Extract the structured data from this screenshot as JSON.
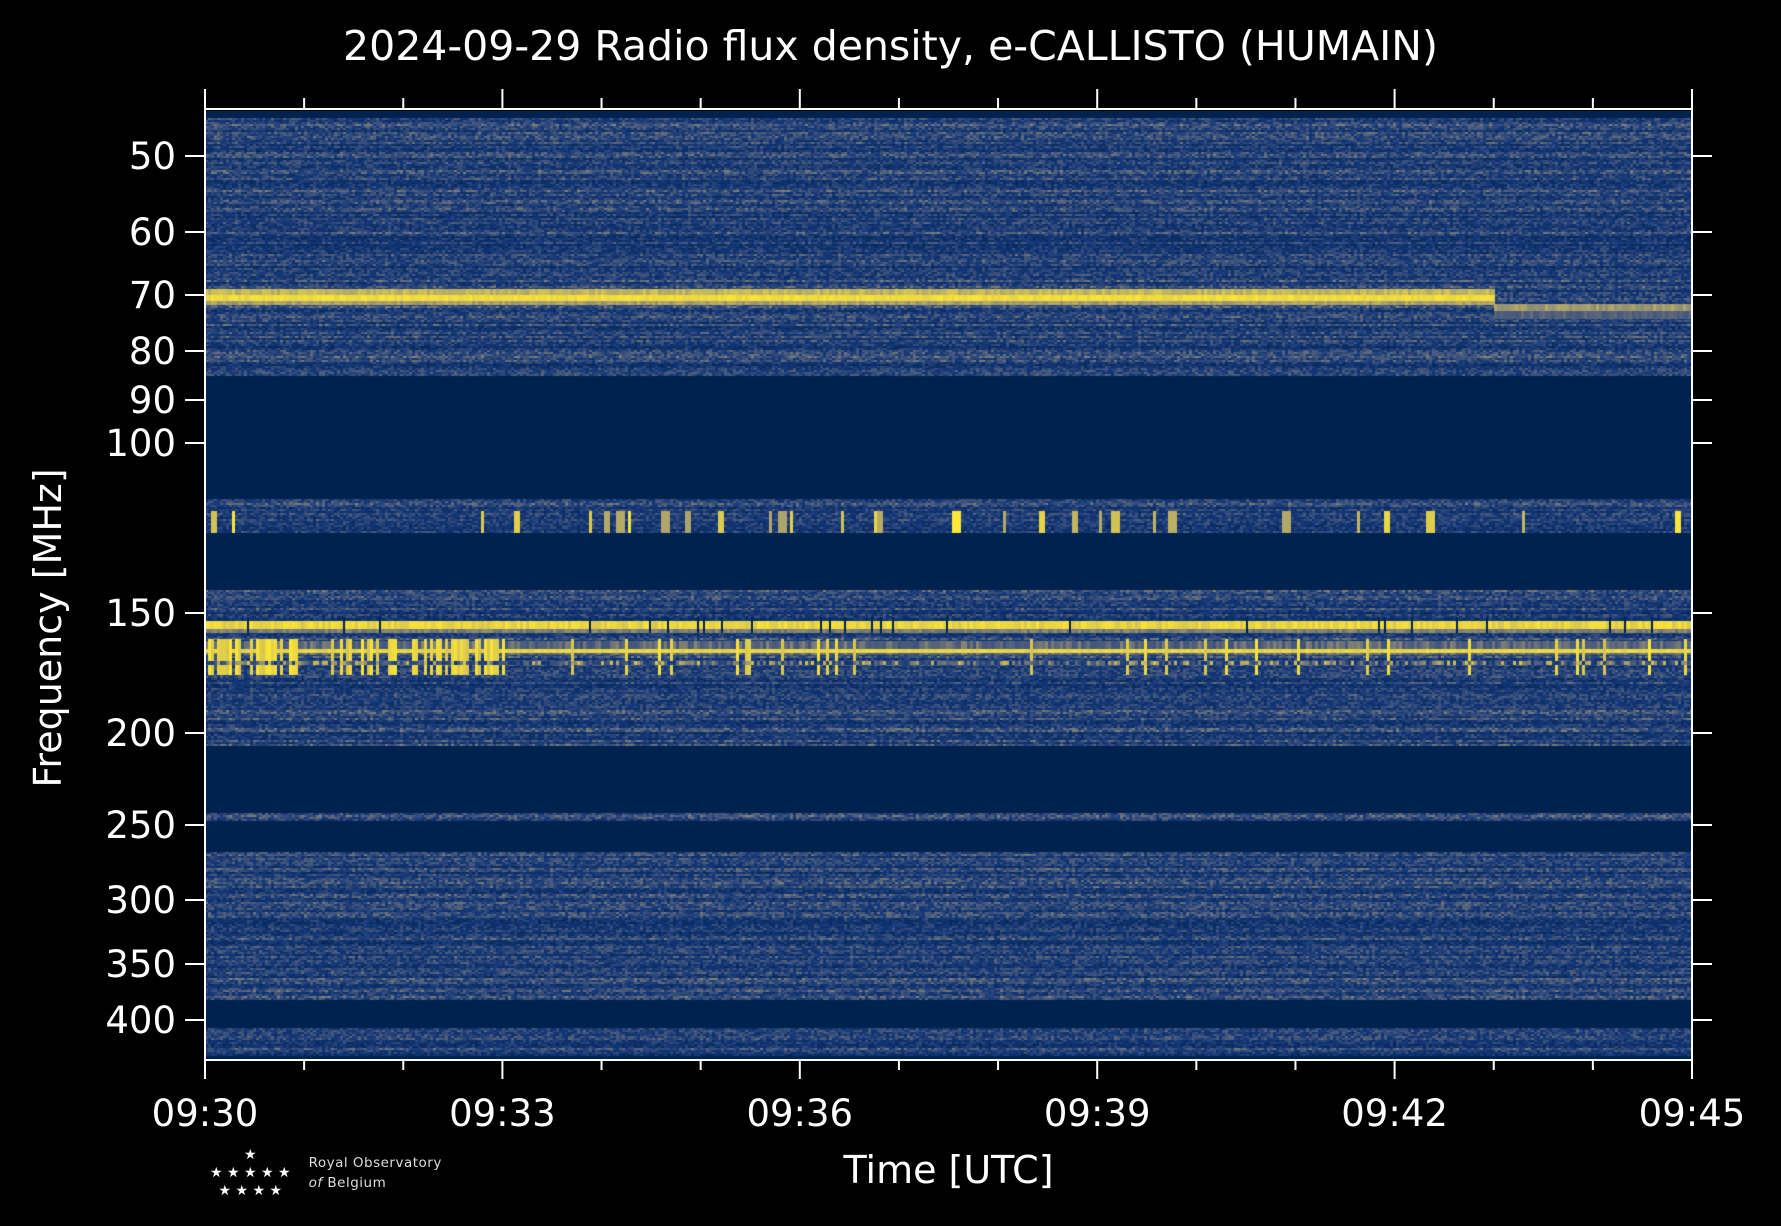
{
  "chart_data": {
    "type": "heatmap",
    "title": "2024-09-29 Radio flux density, e-CALLISTO (HUMAIN)",
    "xlabel": "Time [UTC]",
    "ylabel": "Frequency [MHz]",
    "x_ticks": [
      "09:30",
      "09:33",
      "09:36",
      "09:39",
      "09:42",
      "09:45"
    ],
    "xlim": [
      "09:30",
      "09:45"
    ],
    "y_ticks": [
      "50",
      "60",
      "70",
      "80",
      "90",
      "100",
      "150",
      "200",
      "250",
      "300",
      "350",
      "400"
    ],
    "ylim_mhz": [
      45,
      430
    ],
    "colormap": "cividis",
    "features": [
      {
        "name": "strong persistent emission ~70 MHz, shifts to ~75 MHz at 09:43",
        "freq_mhz": 70
      },
      {
        "name": "persistent emission ~157 MHz",
        "freq_mhz": 157
      },
      {
        "name": "bursty emission ~165-175 MHz",
        "freq_mhz": 170
      },
      {
        "name": "intermittent spikes ~125 MHz",
        "freq_mhz": 125
      }
    ],
    "colors": {
      "low": "#00224e",
      "mid": "#2a4a8a",
      "high": "#fde737"
    }
  },
  "logo": {
    "line1": "Royal Observatory",
    "line2_italic": "of",
    "line2": "Belgium"
  }
}
